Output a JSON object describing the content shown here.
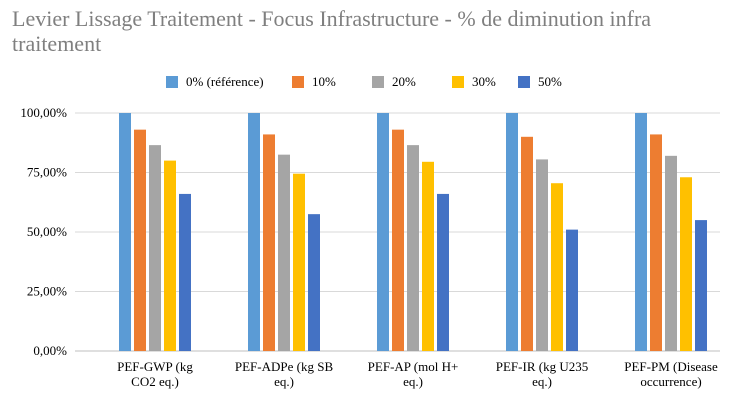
{
  "chart_data": {
    "type": "bar",
    "title": "Levier Lissage Traitement - Focus Infrastructure - % de diminution infra traitement",
    "categories": [
      [
        "PEF-GWP (kg",
        "CO2 eq.)"
      ],
      [
        "PEF-ADPe (kg SB",
        "eq.)"
      ],
      [
        "PEF-AP (mol H+",
        "eq.)"
      ],
      [
        "PEF-IR (kg U235",
        "eq.)"
      ],
      [
        "PEF-PM (Disease",
        "occurrence)"
      ]
    ],
    "series": [
      {
        "name": "0% (référence)",
        "color": "#5b9bd5",
        "values": [
          1.0,
          1.0,
          1.0,
          1.0,
          1.0
        ]
      },
      {
        "name": "10%",
        "color": "#ed7d31",
        "values": [
          0.93,
          0.91,
          0.93,
          0.9,
          0.91
        ]
      },
      {
        "name": "20%",
        "color": "#a5a5a5",
        "values": [
          0.865,
          0.825,
          0.865,
          0.805,
          0.82
        ]
      },
      {
        "name": "30%",
        "color": "#ffc000",
        "values": [
          0.8,
          0.745,
          0.795,
          0.705,
          0.73
        ]
      },
      {
        "name": "50%",
        "color": "#4472c4",
        "values": [
          0.66,
          0.575,
          0.66,
          0.51,
          0.55
        ]
      }
    ],
    "yticks": [
      "0,00%",
      "25,00%",
      "50,00%",
      "75,00%",
      "100,00%"
    ],
    "ylim": [
      0,
      1
    ],
    "grid": true,
    "legend_position": "top"
  }
}
